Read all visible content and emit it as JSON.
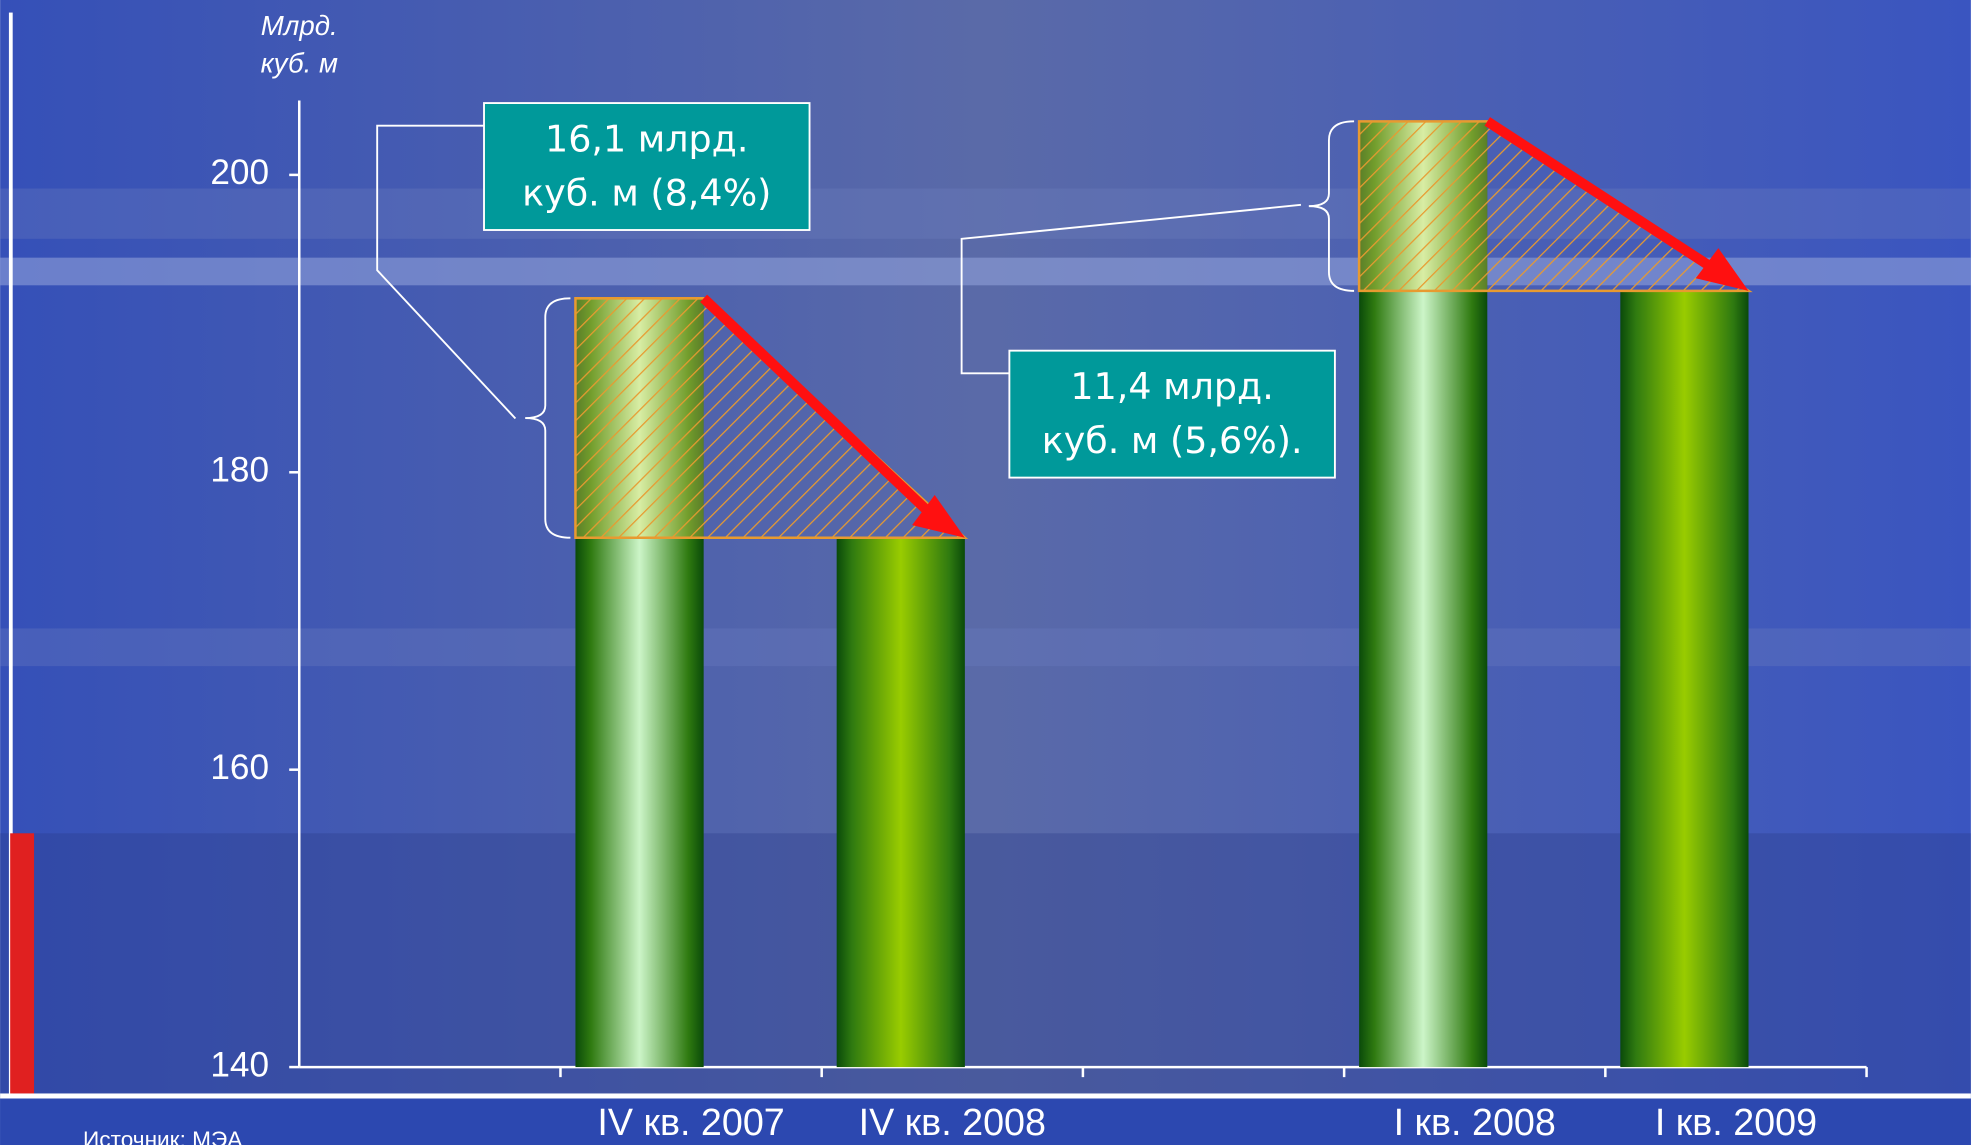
{
  "chart_data": {
    "type": "bar",
    "y_axis_label": [
      "Млрд.",
      "куб. м"
    ],
    "categories": [
      null,
      "IV кв. 2007",
      "IV кв. 2008",
      null,
      "I кв. 2008",
      "I кв. 2009"
    ],
    "values": [
      null,
      191.7,
      175.6,
      null,
      203.6,
      192.2
    ],
    "colors": [
      null,
      "#ccf5c8",
      "#99cc00",
      null,
      "#ccf5c8",
      "#99cc00"
    ],
    "ylim": [
      140,
      205
    ],
    "yticks": [
      140,
      160,
      180,
      200
    ],
    "annotations": [
      [
        "16,1 млрд.",
        "куб. м (8,4%)"
      ],
      [
        "11,4 млрд.",
        "куб. м (5,6%)."
      ]
    ],
    "source": "Источник: МЭА"
  }
}
